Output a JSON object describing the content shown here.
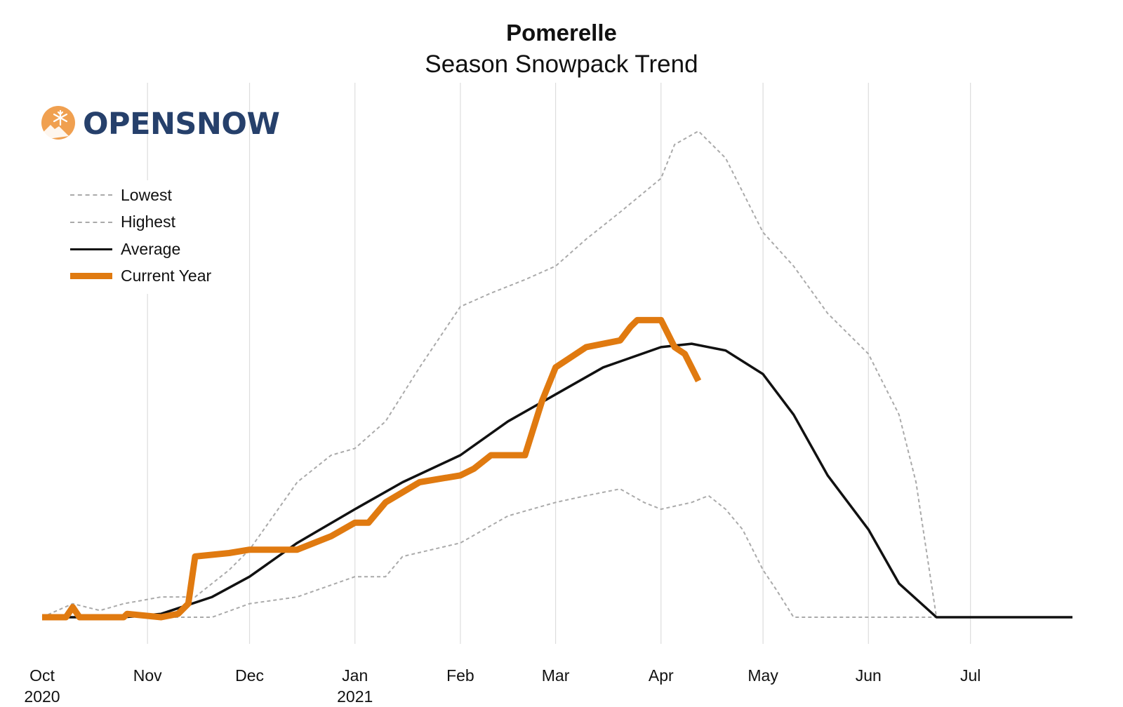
{
  "chart_data": {
    "type": "line",
    "title": "Pomerelle",
    "subtitle": "Season Snowpack Trend",
    "xlabel": "",
    "ylabel": "",
    "grid": "vertical",
    "legend_position": "top-left",
    "x_ticks": [
      {
        "date": "2020-10-01",
        "label": "Oct",
        "sub": "2020"
      },
      {
        "date": "2020-11-01",
        "label": "Nov",
        "sub": ""
      },
      {
        "date": "2020-12-01",
        "label": "Dec",
        "sub": ""
      },
      {
        "date": "2021-01-01",
        "label": "Jan",
        "sub": "2021"
      },
      {
        "date": "2021-02-01",
        "label": "Feb",
        "sub": ""
      },
      {
        "date": "2021-03-01",
        "label": "Mar",
        "sub": ""
      },
      {
        "date": "2021-04-01",
        "label": "Apr",
        "sub": ""
      },
      {
        "date": "2021-05-01",
        "label": "May",
        "sub": ""
      },
      {
        "date": "2021-06-01",
        "label": "Jun",
        "sub": ""
      },
      {
        "date": "2021-07-01",
        "label": "Jul",
        "sub": ""
      }
    ],
    "x_range": [
      "2020-10-01",
      "2021-07-31"
    ],
    "y_range": [
      0,
      75
    ],
    "series": [
      {
        "name": "Lowest",
        "color": "#aaaaaa",
        "style": "dashed",
        "points": [
          [
            "2020-10-01",
            0
          ],
          [
            "2020-10-20",
            0
          ],
          [
            "2020-11-10",
            0
          ],
          [
            "2020-11-20",
            0
          ],
          [
            "2020-12-01",
            2
          ],
          [
            "2020-12-15",
            3
          ],
          [
            "2021-01-01",
            6
          ],
          [
            "2021-01-10",
            6
          ],
          [
            "2021-01-15",
            9
          ],
          [
            "2021-02-01",
            11
          ],
          [
            "2021-02-15",
            15
          ],
          [
            "2021-03-01",
            17
          ],
          [
            "2021-03-10",
            18
          ],
          [
            "2021-03-20",
            19
          ],
          [
            "2021-03-27",
            17
          ],
          [
            "2021-04-01",
            16
          ],
          [
            "2021-04-10",
            17
          ],
          [
            "2021-04-15",
            18
          ],
          [
            "2021-04-20",
            16
          ],
          [
            "2021-04-25",
            13
          ],
          [
            "2021-05-01",
            7
          ],
          [
            "2021-05-05",
            4
          ],
          [
            "2021-05-10",
            0
          ],
          [
            "2021-06-21",
            0
          ]
        ]
      },
      {
        "name": "Highest",
        "color": "#aaaaaa",
        "style": "dashed",
        "points": [
          [
            "2020-10-01",
            0
          ],
          [
            "2020-10-10",
            2
          ],
          [
            "2020-10-18",
            1
          ],
          [
            "2020-10-25",
            2
          ],
          [
            "2020-11-05",
            3
          ],
          [
            "2020-11-15",
            3
          ],
          [
            "2020-11-25",
            7
          ],
          [
            "2020-12-01",
            10
          ],
          [
            "2020-12-08",
            15
          ],
          [
            "2020-12-15",
            20
          ],
          [
            "2020-12-25",
            24
          ],
          [
            "2021-01-01",
            25
          ],
          [
            "2021-01-10",
            29
          ],
          [
            "2021-01-20",
            37
          ],
          [
            "2021-02-01",
            46
          ],
          [
            "2021-02-10",
            48
          ],
          [
            "2021-02-20",
            50
          ],
          [
            "2021-03-01",
            52
          ],
          [
            "2021-03-10",
            56
          ],
          [
            "2021-03-20",
            60
          ],
          [
            "2021-04-01",
            65
          ],
          [
            "2021-04-05",
            70
          ],
          [
            "2021-04-12",
            72
          ],
          [
            "2021-04-20",
            68
          ],
          [
            "2021-05-01",
            57
          ],
          [
            "2021-05-10",
            52
          ],
          [
            "2021-05-20",
            45
          ],
          [
            "2021-06-01",
            39
          ],
          [
            "2021-06-10",
            30
          ],
          [
            "2021-06-15",
            20
          ],
          [
            "2021-06-21",
            0
          ]
        ]
      },
      {
        "name": "Average",
        "color": "#111111",
        "style": "solid",
        "points": [
          [
            "2020-10-01",
            0
          ],
          [
            "2020-10-25",
            0
          ],
          [
            "2020-11-05",
            0.5
          ],
          [
            "2020-11-20",
            3
          ],
          [
            "2020-12-01",
            6
          ],
          [
            "2020-12-15",
            11
          ],
          [
            "2021-01-01",
            16
          ],
          [
            "2021-01-15",
            20
          ],
          [
            "2021-02-01",
            24
          ],
          [
            "2021-02-15",
            29
          ],
          [
            "2021-03-01",
            33
          ],
          [
            "2021-03-15",
            37
          ],
          [
            "2021-04-01",
            40
          ],
          [
            "2021-04-10",
            40.5
          ],
          [
            "2021-04-20",
            39.5
          ],
          [
            "2021-05-01",
            36
          ],
          [
            "2021-05-10",
            30
          ],
          [
            "2021-05-20",
            21
          ],
          [
            "2021-06-01",
            13
          ],
          [
            "2021-06-10",
            5
          ],
          [
            "2021-06-21",
            0
          ],
          [
            "2021-07-31",
            0
          ]
        ]
      },
      {
        "name": "Current Year",
        "color": "#e07a10",
        "style": "solid",
        "points": [
          [
            "2020-10-01",
            0
          ],
          [
            "2020-10-08",
            0
          ],
          [
            "2020-10-10",
            1.5
          ],
          [
            "2020-10-12",
            0
          ],
          [
            "2020-10-25",
            0
          ],
          [
            "2020-10-26",
            0.5
          ],
          [
            "2020-11-05",
            0
          ],
          [
            "2020-11-10",
            0.5
          ],
          [
            "2020-11-13",
            2
          ],
          [
            "2020-11-15",
            9
          ],
          [
            "2020-11-25",
            9.5
          ],
          [
            "2020-12-01",
            10
          ],
          [
            "2020-12-15",
            10
          ],
          [
            "2020-12-20",
            11
          ],
          [
            "2020-12-25",
            12
          ],
          [
            "2021-01-01",
            14
          ],
          [
            "2021-01-05",
            14
          ],
          [
            "2021-01-10",
            17
          ],
          [
            "2021-01-20",
            20
          ],
          [
            "2021-02-01",
            21
          ],
          [
            "2021-02-05",
            22
          ],
          [
            "2021-02-10",
            24
          ],
          [
            "2021-02-20",
            24
          ],
          [
            "2021-02-25",
            32
          ],
          [
            "2021-03-01",
            37
          ],
          [
            "2021-03-10",
            40
          ],
          [
            "2021-03-20",
            41
          ],
          [
            "2021-03-23",
            43
          ],
          [
            "2021-03-25",
            44
          ],
          [
            "2021-04-01",
            44
          ],
          [
            "2021-04-03",
            42
          ],
          [
            "2021-04-05",
            40
          ],
          [
            "2021-04-08",
            39
          ],
          [
            "2021-04-10",
            37
          ],
          [
            "2021-04-12",
            35
          ]
        ]
      }
    ]
  },
  "logo": {
    "text": "OPENSNOW",
    "icon": "snowflake-mountain-icon",
    "color": "#26406b",
    "icon_color": "#f0a050"
  },
  "colors": {
    "grid": "#dddddd",
    "background": "#ffffff"
  }
}
